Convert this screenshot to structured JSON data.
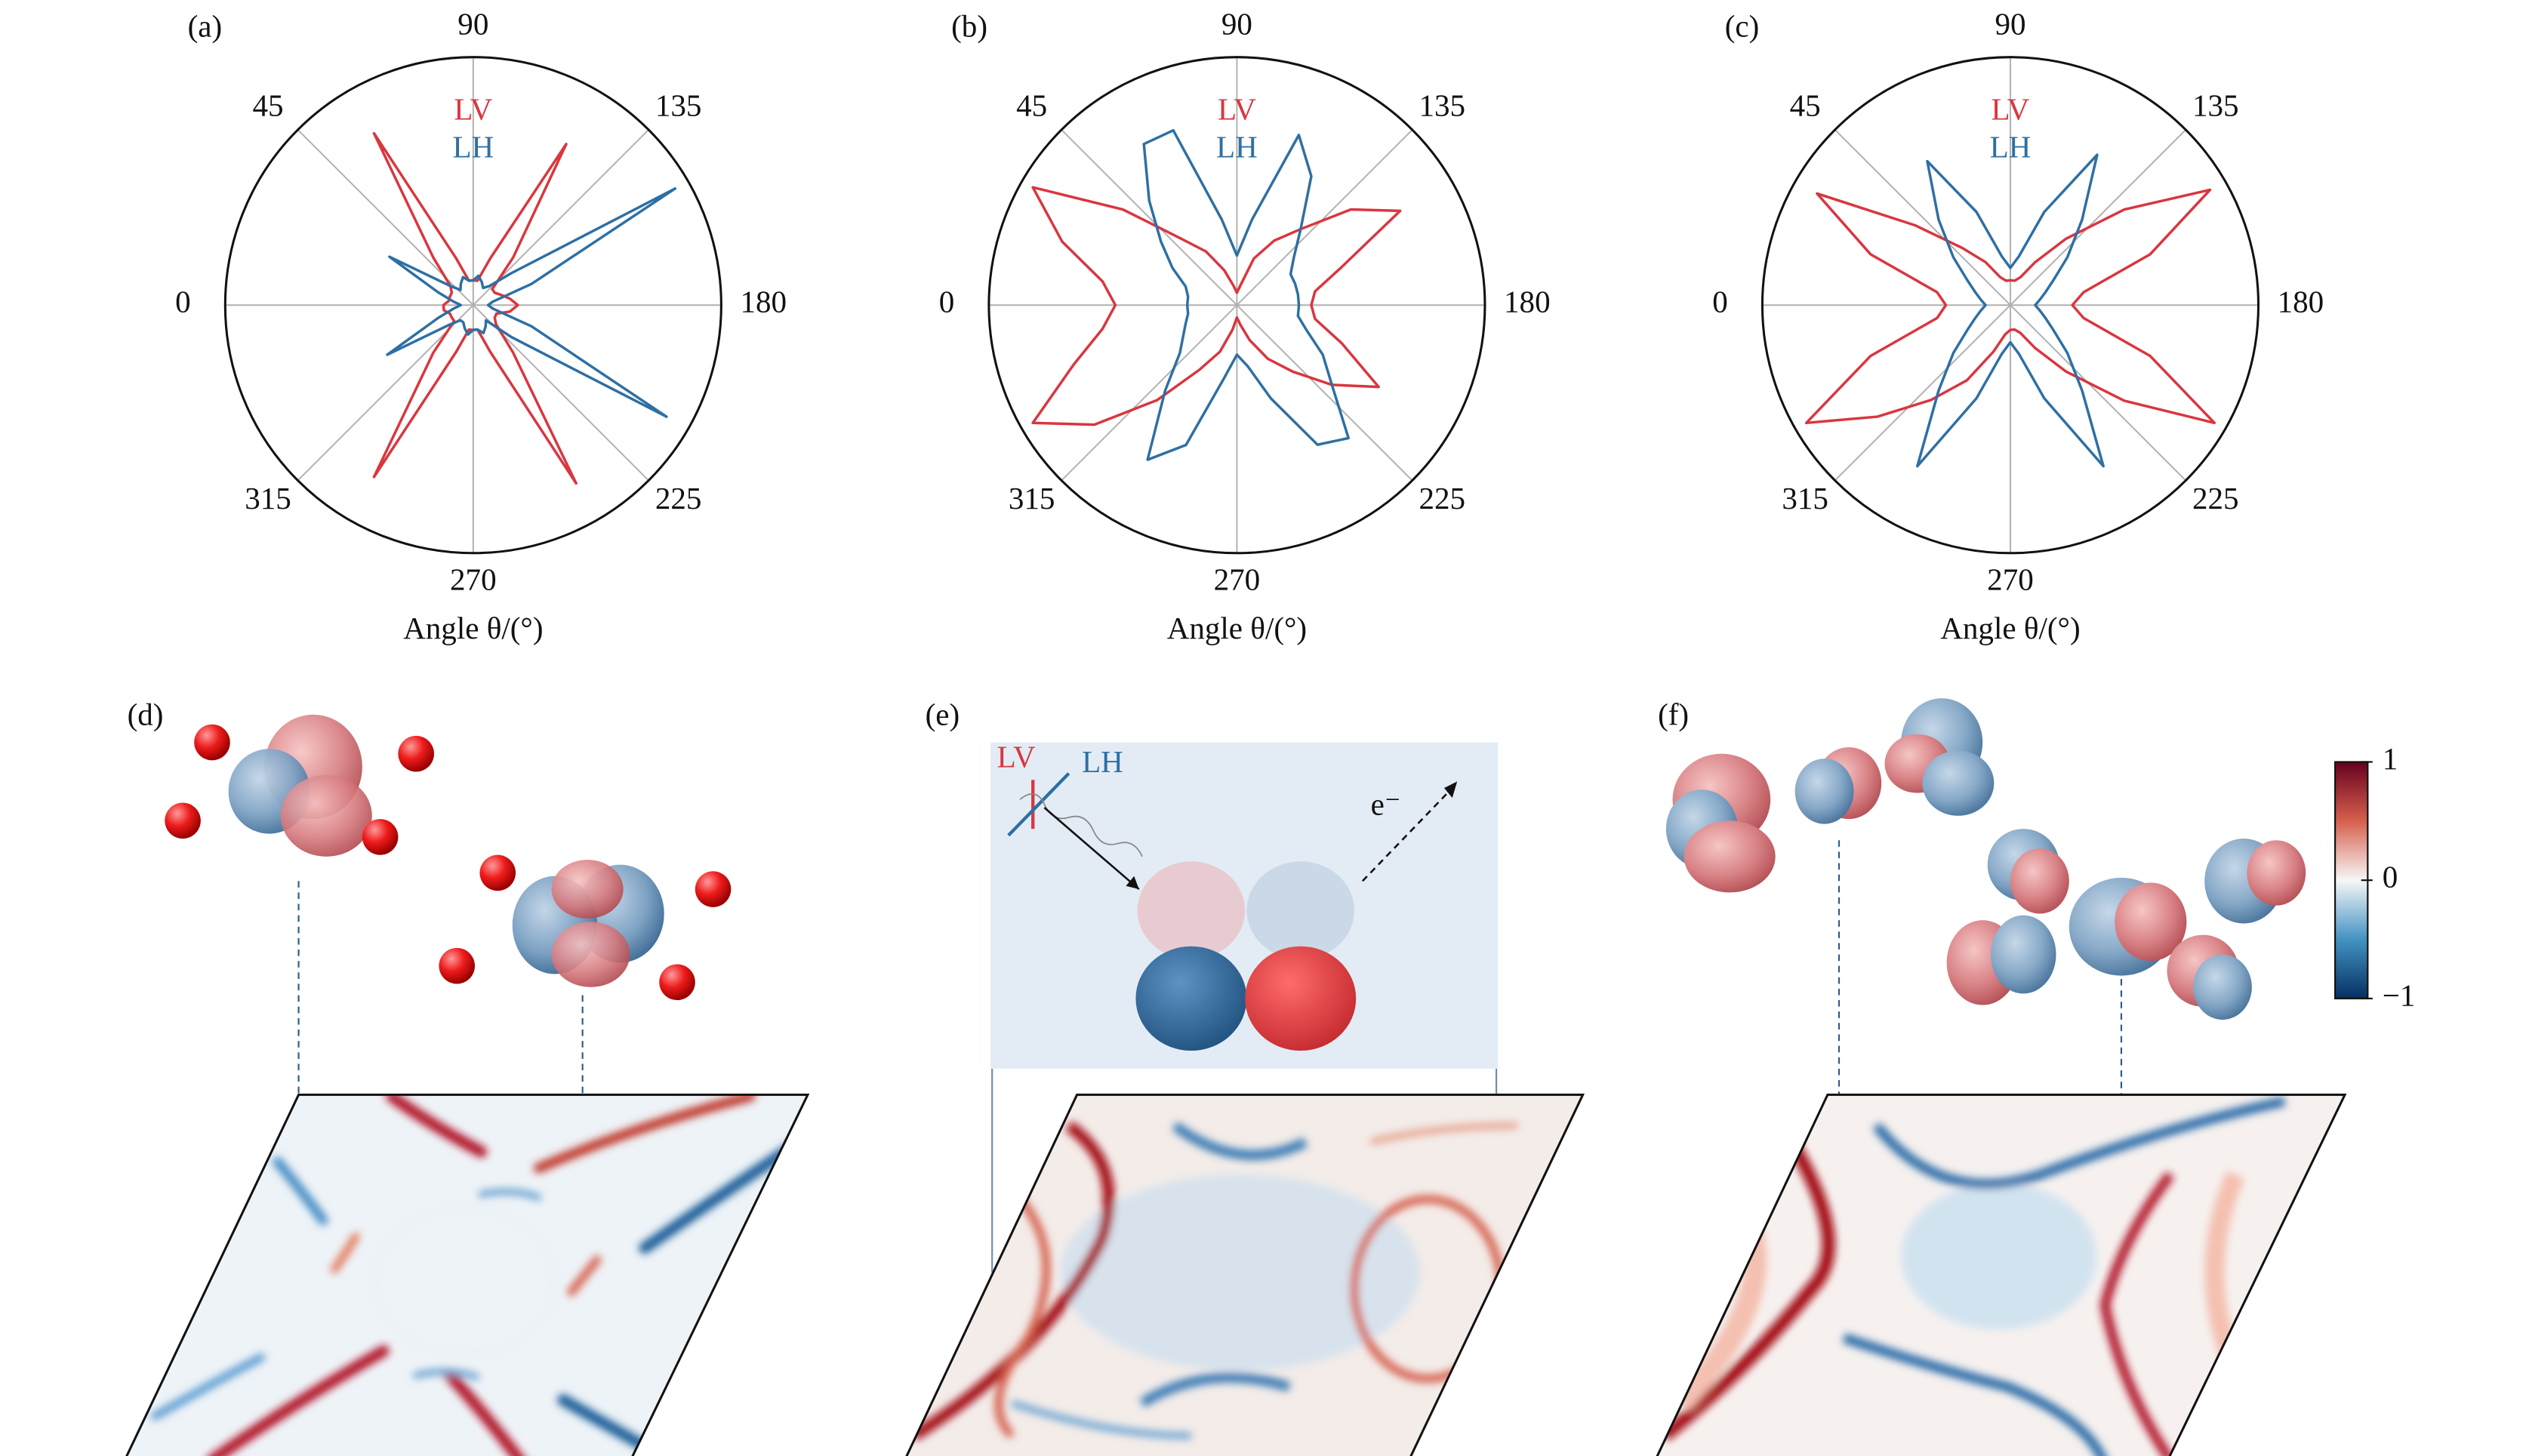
{
  "chart_data": [
    {
      "type": "polar",
      "panel_label": "(a)",
      "xlabel": "Angle θ/(°)",
      "legend": "top",
      "grid": true,
      "x": [
        0,
        10,
        20,
        30,
        40,
        50,
        60,
        70,
        80,
        90,
        100,
        110,
        120,
        130,
        140,
        150,
        160,
        170,
        180,
        190,
        200,
        210,
        220,
        230,
        240,
        250,
        260,
        270,
        280,
        290,
        300,
        310,
        320,
        330,
        340,
        350
      ],
      "xlim": [
        0,
        360
      ],
      "xticks": [
        0,
        45,
        90,
        135,
        180,
        225,
        270,
        315
      ],
      "ylim": [
        0,
        1
      ],
      "series": [
        {
          "name": "LV",
          "color": "#d9363e",
          "values": [
            0.12,
            0.1,
            0.1,
            0.1,
            0.12,
            0.25,
            0.8,
            0.2,
            0.1,
            0.1,
            0.1,
            0.2,
            0.75,
            0.25,
            0.1,
            0.1,
            0.12,
            0.15,
            0.18,
            0.15,
            0.1,
            0.1,
            0.12,
            0.25,
            0.83,
            0.2,
            0.1,
            0.1,
            0.1,
            0.2,
            0.8,
            0.25,
            0.1,
            0.1,
            0.1,
            0.12
          ]
        },
        {
          "name": "LH",
          "color": "#2e6fa3",
          "values": [
            0.05,
            0.08,
            0.15,
            0.39,
            0.12,
            0.08,
            0.1,
            0.12,
            0.1,
            0.1,
            0.12,
            0.1,
            0.08,
            0.1,
            0.2,
            0.94,
            0.25,
            0.08,
            0.06,
            0.08,
            0.25,
            0.9,
            0.2,
            0.08,
            0.1,
            0.12,
            0.1,
            0.1,
            0.12,
            0.1,
            0.08,
            0.08,
            0.12,
            0.4,
            0.15,
            0.08
          ]
        }
      ]
    },
    {
      "type": "polar",
      "panel_label": "(b)",
      "xlabel": "Angle θ/(°)",
      "legend": "top",
      "grid": true,
      "x": [
        0,
        10,
        20,
        30,
        40,
        50,
        60,
        70,
        80,
        90,
        100,
        110,
        120,
        130,
        140,
        150,
        160,
        170,
        180,
        190,
        200,
        210,
        220,
        230,
        240,
        250,
        260,
        270,
        280,
        290,
        300,
        310,
        320,
        330,
        340,
        350
      ],
      "xlim": [
        0,
        360
      ],
      "xticks": [
        0,
        45,
        90,
        135,
        180,
        225,
        270,
        315
      ],
      "ylim": [
        0,
        1
      ],
      "series": [
        {
          "name": "LV",
          "color": "#d9363e",
          "values": [
            0.49,
            0.55,
            0.75,
            0.95,
            0.6,
            0.35,
            0.25,
            0.15,
            0.08,
            0.05,
            0.08,
            0.2,
            0.3,
            0.4,
            0.6,
            0.76,
            0.45,
            0.32,
            0.3,
            0.32,
            0.45,
            0.66,
            0.5,
            0.35,
            0.25,
            0.15,
            0.08,
            0.05,
            0.1,
            0.2,
            0.3,
            0.5,
            0.75,
            0.95,
            0.7,
            0.55
          ]
        },
        {
          "name": "LH",
          "color": "#2e6fa3",
          "values": [
            0.2,
            0.2,
            0.22,
            0.3,
            0.4,
            0.55,
            0.75,
            0.75,
            0.35,
            0.2,
            0.35,
            0.73,
            0.6,
            0.4,
            0.3,
            0.25,
            0.25,
            0.25,
            0.25,
            0.25,
            0.3,
            0.4,
            0.5,
            0.7,
            0.65,
            0.4,
            0.25,
            0.2,
            0.3,
            0.6,
            0.72,
            0.45,
            0.3,
            0.25,
            0.22,
            0.2
          ]
        }
      ]
    },
    {
      "type": "polar",
      "panel_label": "(c)",
      "xlabel": "Angle θ/(°)",
      "legend": "top",
      "grid": true,
      "x": [
        0,
        10,
        20,
        30,
        40,
        50,
        60,
        70,
        80,
        90,
        100,
        110,
        120,
        130,
        140,
        150,
        160,
        170,
        180,
        190,
        200,
        210,
        220,
        230,
        240,
        250,
        260,
        270,
        280,
        290,
        300,
        310,
        320,
        330,
        340,
        350
      ],
      "xlim": [
        0,
        360
      ],
      "xticks": [
        0,
        45,
        90,
        135,
        180,
        225,
        270,
        315
      ],
      "ylim": [
        0,
        1
      ],
      "series": [
        {
          "name": "LV",
          "color": "#d9363e",
          "values": [
            0.26,
            0.3,
            0.6,
            0.9,
            0.5,
            0.3,
            0.2,
            0.12,
            0.1,
            0.1,
            0.1,
            0.12,
            0.2,
            0.35,
            0.6,
            0.93,
            0.6,
            0.3,
            0.25,
            0.3,
            0.6,
            0.95,
            0.6,
            0.35,
            0.2,
            0.12,
            0.1,
            0.1,
            0.12,
            0.2,
            0.35,
            0.5,
            0.7,
            0.95,
            0.6,
            0.3
          ]
        },
        {
          "name": "LH",
          "color": "#2e6fa3",
          "values": [
            0.1,
            0.12,
            0.15,
            0.2,
            0.3,
            0.45,
            0.67,
            0.4,
            0.2,
            0.15,
            0.2,
            0.4,
            0.7,
            0.45,
            0.3,
            0.2,
            0.15,
            0.12,
            0.1,
            0.12,
            0.15,
            0.2,
            0.3,
            0.45,
            0.75,
            0.4,
            0.2,
            0.15,
            0.2,
            0.4,
            0.75,
            0.45,
            0.3,
            0.2,
            0.15,
            0.12
          ]
        }
      ]
    },
    {
      "type": "colorbar",
      "ylim": [
        -1,
        1
      ],
      "yticks": [
        1,
        0,
        {
          "value": -1,
          "label": "−1"
        }
      ]
    }
  ],
  "panels": [
    {
      "label": "(d)"
    },
    {
      "label": "(e)",
      "polarization_labels": [
        "LV",
        "LH"
      ],
      "electron_label": "e⁻"
    },
    {
      "label": "(f)"
    }
  ]
}
